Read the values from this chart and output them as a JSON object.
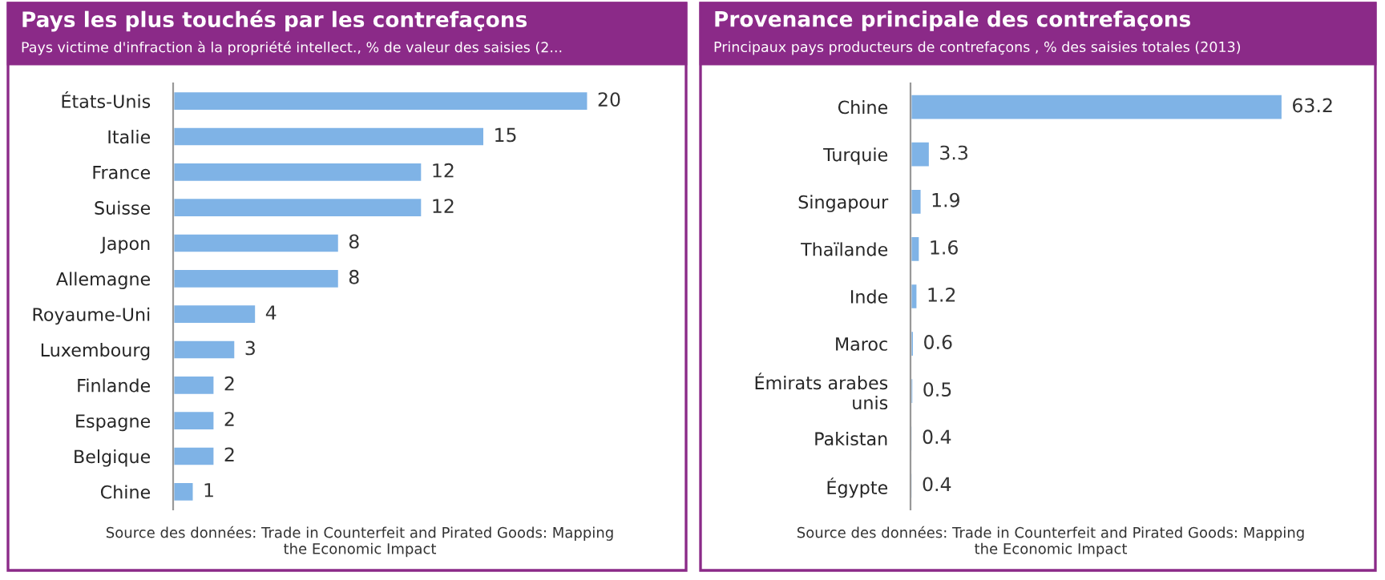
{
  "chart_data": [
    {
      "type": "bar",
      "orientation": "horizontal",
      "title": "Pays les plus touchés par les contrefaçons",
      "subtitle": "Pays victime d'infraction à la propriété intellect., % de valeur des saisies (2...",
      "categories": [
        "États-Unis",
        "Italie",
        "France",
        "Suisse",
        "Japon",
        "Allemagne",
        "Royaume-Uni",
        "Luxembourg",
        "Finlande",
        "Espagne",
        "Belgique",
        "Chine"
      ],
      "values": [
        20,
        15,
        12,
        12,
        8,
        8,
        4,
        3,
        2,
        2,
        2,
        1
      ],
      "color": "#7fb3e6",
      "data_labels": true,
      "grid": false,
      "legend": false,
      "annotations": [
        "Source des données: Trade in Counterfeit and Pirated Goods: Mapping the Economic Impact"
      ]
    },
    {
      "type": "bar",
      "orientation": "horizontal",
      "title": "Provenance principale des contrefaçons",
      "subtitle": "Principaux pays producteurs de contrefaçons , % des saisies totales (2013)",
      "categories": [
        "Chine",
        "Turquie",
        "Singapour",
        "Thaïlande",
        "Inde",
        "Maroc",
        "Émirats arabes unis",
        "Pakistan",
        "Égypte"
      ],
      "values": [
        63.2,
        3.3,
        1.9,
        1.6,
        1.2,
        0.6,
        0.5,
        0.4,
        0.4
      ],
      "color": "#7fb3e6",
      "data_labels": true,
      "grid": false,
      "legend": false,
      "annotations": [
        "Source des données: Trade in Counterfeit and Pirated Goods: Mapping the Economic Impact"
      ]
    }
  ]
}
